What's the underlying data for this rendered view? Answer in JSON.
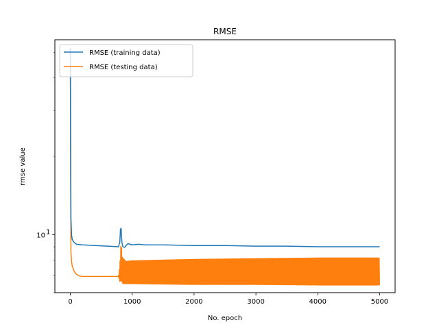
{
  "chart_data": {
    "type": "line",
    "title": "RMSE",
    "xlabel": "No. epoch",
    "ylabel": "rmse value",
    "xlim": [
      -250,
      5250
    ],
    "ylim": [
      6.0,
      56.0
    ],
    "yscale": "log",
    "grid": false,
    "legend_position": "upper-left",
    "x_ticks": [
      0,
      1000,
      2000,
      3000,
      4000,
      5000
    ],
    "x_tick_labels": [
      "0",
      "1000",
      "2000",
      "3000",
      "4000",
      "5000"
    ],
    "y_ticks": [
      10
    ],
    "y_tick_labels": [
      "10^1"
    ],
    "series": [
      {
        "name": "RMSE (training data)",
        "color": "#1f77b4",
        "x": [
          0,
          5,
          10,
          20,
          30,
          60,
          100,
          200,
          400,
          600,
          780,
          800,
          810,
          820,
          835,
          850,
          880,
          900,
          930,
          1000,
          1100,
          1200,
          1500,
          2000,
          2500,
          3000,
          3500,
          4000,
          4500,
          5000
        ],
        "y": [
          52.0,
          22.0,
          11.5,
          10.0,
          9.6,
          9.35,
          9.2,
          9.15,
          9.1,
          9.05,
          9.0,
          9.4,
          10.5,
          10.6,
          9.3,
          9.0,
          8.95,
          9.1,
          9.25,
          9.15,
          9.2,
          9.15,
          9.15,
          9.1,
          9.1,
          9.05,
          9.05,
          9.0,
          9.0,
          9.0
        ]
      },
      {
        "name": "RMSE (testing data)",
        "color": "#ff7f0e",
        "x": [
          0,
          5,
          10,
          20,
          30,
          60,
          100,
          150,
          200,
          400,
          600,
          780
        ],
        "y": [
          43.0,
          15.0,
          8.6,
          7.9,
          7.6,
          7.25,
          7.05,
          6.95,
          6.92,
          6.92,
          6.92,
          6.92
        ],
        "oscillation": {
          "x_start": 780,
          "x_end": 5000,
          "upper": [
            [
              780,
              7.0
            ],
            [
              800,
              7.6
            ],
            [
              820,
              9.4
            ],
            [
              840,
              8.2
            ],
            [
              900,
              7.9
            ],
            [
              1000,
              7.95
            ],
            [
              1500,
              8.0
            ],
            [
              2000,
              8.05
            ],
            [
              3000,
              8.1
            ],
            [
              4000,
              8.15
            ],
            [
              5000,
              8.15
            ]
          ],
          "lower": [
            [
              780,
              6.9
            ],
            [
              800,
              6.6
            ],
            [
              820,
              6.7
            ],
            [
              850,
              6.5
            ],
            [
              1000,
              6.5
            ],
            [
              2000,
              6.45
            ],
            [
              3000,
              6.45
            ],
            [
              4000,
              6.42
            ],
            [
              5000,
              6.42
            ]
          ]
        }
      }
    ]
  }
}
